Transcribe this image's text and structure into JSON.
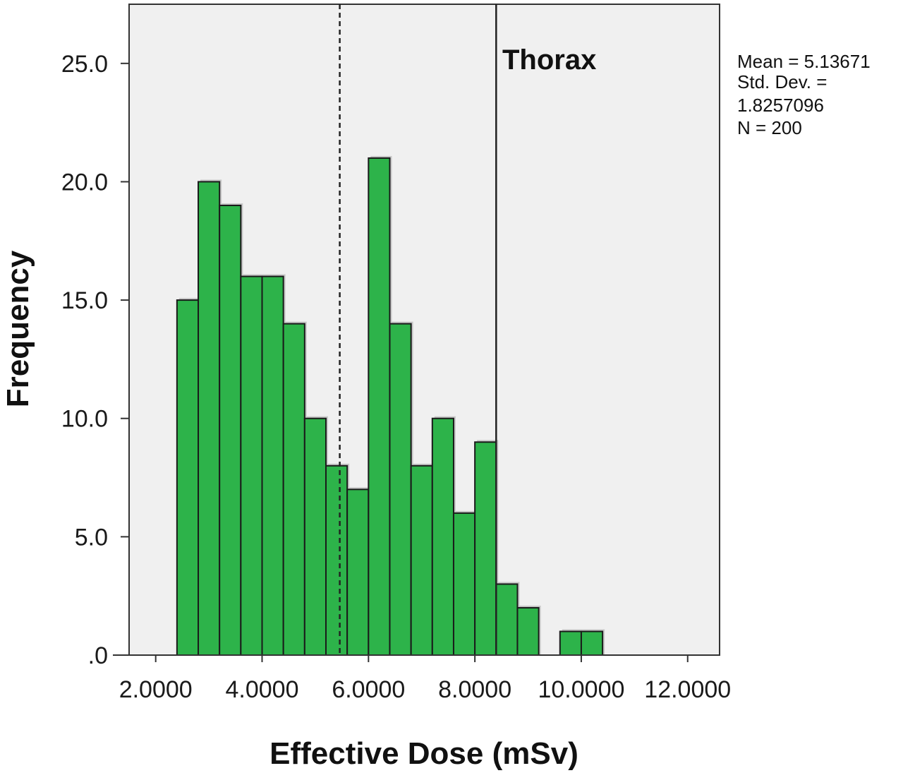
{
  "chart_data": {
    "type": "bar",
    "subtype": "histogram",
    "annotation": "Thorax",
    "xlabel": "Effective Dose (mSv)",
    "ylabel": "Frequency",
    "xlim": [
      1.5,
      12.6
    ],
    "ylim": [
      0,
      27.5
    ],
    "x_ticks": [
      {
        "value": 2,
        "label": "2.0000"
      },
      {
        "value": 4,
        "label": "4.0000"
      },
      {
        "value": 6,
        "label": "6.0000"
      },
      {
        "value": 8,
        "label": "8.0000"
      },
      {
        "value": 10,
        "label": "10.0000"
      },
      {
        "value": 12,
        "label": "12.0000"
      }
    ],
    "y_ticks": [
      {
        "value": 0,
        "label": ".0"
      },
      {
        "value": 5,
        "label": "5.0"
      },
      {
        "value": 10,
        "label": "10.0"
      },
      {
        "value": 15,
        "label": "15.0"
      },
      {
        "value": 20,
        "label": "20.0"
      },
      {
        "value": 25,
        "label": "25.0"
      }
    ],
    "bin_width": 0.4,
    "bins": [
      {
        "start": 2.4,
        "count": 15
      },
      {
        "start": 2.8,
        "count": 20
      },
      {
        "start": 3.2,
        "count": 19
      },
      {
        "start": 3.6,
        "count": 16
      },
      {
        "start": 4.0,
        "count": 16
      },
      {
        "start": 4.4,
        "count": 14
      },
      {
        "start": 4.8,
        "count": 10
      },
      {
        "start": 5.2,
        "count": 8
      },
      {
        "start": 5.6,
        "count": 7
      },
      {
        "start": 6.0,
        "count": 21
      },
      {
        "start": 6.4,
        "count": 14
      },
      {
        "start": 6.8,
        "count": 8
      },
      {
        "start": 7.2,
        "count": 10
      },
      {
        "start": 7.6,
        "count": 6
      },
      {
        "start": 8.0,
        "count": 9
      },
      {
        "start": 8.4,
        "count": 3
      },
      {
        "start": 8.8,
        "count": 2
      },
      {
        "start": 9.6,
        "count": 1
      },
      {
        "start": 10.0,
        "count": 1
      }
    ],
    "reference_lines": [
      {
        "x": 5.46,
        "style": "dashed"
      },
      {
        "x": 8.4,
        "style": "solid"
      }
    ],
    "stats": {
      "mean_line": "Mean = 5.13671",
      "sd_line_1": "Std. Dev. =",
      "sd_line_2": "1.8257096",
      "n_line": "N = 200"
    },
    "colors": {
      "bar_fill": "#2db34a",
      "bar_stroke": "#1a1a1a",
      "plot_background": "#f0f0f0",
      "frame": "#333333"
    }
  }
}
